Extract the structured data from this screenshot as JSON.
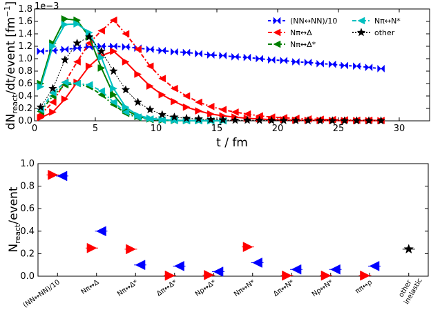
{
  "chart_data": [
    {
      "type": "line",
      "title": "",
      "xlabel": "t / fm",
      "ylabel": "dN_react/dt/event [fm^-1]",
      "ylabel_parts": {
        "main": "dN",
        "sub": "react",
        "rest": "/dt/event [fm",
        "sup": "−1",
        "end": "]"
      },
      "y_scale_note": "1e−3",
      "xlim": [
        0,
        32.5
      ],
      "ylim": [
        0,
        1.8
      ],
      "xticks": [
        0,
        5,
        10,
        15,
        20,
        25,
        30
      ],
      "yticks": [
        0.0,
        0.2,
        0.4,
        0.6,
        0.8,
        1.0,
        1.2,
        1.4,
        1.6,
        1.8
      ],
      "ytick_labels": [
        "0.0",
        "0.2",
        "0.4",
        "0.6",
        "0.8",
        "1.0",
        "1.2",
        "1.4",
        "1.6",
        "1.8"
      ],
      "grid": false,
      "legend_position": "top-right",
      "series": [
        {
          "name": "(NN↔NN)/10",
          "color": "#0000ff",
          "marker": "bowtie",
          "dash": "4,3",
          "x": [
            0.5,
            1.5,
            2.5,
            3.5,
            4.5,
            5.5,
            6.5,
            7.5,
            8.5,
            9.5,
            10.5,
            11.5,
            12.5,
            13.5,
            14.5,
            15.5,
            16.5,
            17.5,
            18.5,
            19.5,
            20.5,
            21.5,
            22.5,
            23.5,
            24.5,
            25.5,
            26.5,
            27.5,
            28.5
          ],
          "y": [
            1.12,
            1.13,
            1.15,
            1.17,
            1.19,
            1.2,
            1.2,
            1.19,
            1.17,
            1.15,
            1.13,
            1.11,
            1.1,
            1.08,
            1.06,
            1.05,
            1.03,
            1.02,
            1.0,
            0.98,
            0.97,
            0.95,
            0.94,
            0.92,
            0.91,
            0.89,
            0.88,
            0.86,
            0.84
          ]
        },
        {
          "name": "Nπ↔Δ",
          "color": "#ff0000",
          "marker": "tri-left",
          "dash": "6,3,2,3",
          "x": [
            0.5,
            1.5,
            2.5,
            3.5,
            4.5,
            5.5,
            6.5,
            7.5,
            8.5,
            9.5,
            10.5,
            11.5,
            12.5,
            13.5,
            14.5,
            15.5,
            16.5,
            17.5,
            18.5,
            19.5,
            20.5,
            21.5,
            22.5,
            23.5,
            24.5,
            25.5,
            26.5,
            27.5,
            28.5
          ],
          "y": [
            0.1,
            0.3,
            0.62,
            0.95,
            1.25,
            1.45,
            1.62,
            1.4,
            1.15,
            0.88,
            0.68,
            0.52,
            0.4,
            0.3,
            0.23,
            0.18,
            0.14,
            0.11,
            0.08,
            0.06,
            0.05,
            0.04,
            0.03,
            0.025,
            0.02,
            0.015,
            0.01,
            0.01,
            0.005
          ]
        },
        {
          "name": "",
          "color": "#ff0000",
          "marker": "tri-right",
          "dash": "",
          "x": [
            0.5,
            1.5,
            2.5,
            3.5,
            4.5,
            5.5,
            6.5,
            7.5,
            8.5,
            9.5,
            10.5,
            11.5,
            12.5,
            13.5,
            14.5,
            15.5,
            16.5,
            17.5,
            18.5,
            19.5,
            20.5,
            21.5,
            22.5,
            23.5,
            24.5,
            25.5,
            26.5,
            27.5,
            28.5
          ],
          "y": [
            0.05,
            0.14,
            0.35,
            0.62,
            0.88,
            1.05,
            1.12,
            0.95,
            0.75,
            0.56,
            0.42,
            0.31,
            0.22,
            0.16,
            0.11,
            0.08,
            0.06,
            0.04,
            0.03,
            0.02,
            0.015,
            0.01,
            0.008,
            0.006,
            0.005,
            0.004,
            0.003,
            0.002,
            0.002
          ]
        },
        {
          "name": "Nπ↔Δ*",
          "color": "#007f00",
          "marker": "tri-left",
          "dash": "6,3,2,3",
          "x": [
            0.5,
            1.5,
            2.5,
            3.5,
            4.5,
            5.5,
            6.5,
            7.5,
            8.5,
            9.5,
            10.5,
            11.5,
            12.5,
            13.5,
            14.5,
            15.5
          ],
          "y": [
            0.15,
            0.4,
            0.58,
            0.6,
            0.55,
            0.42,
            0.26,
            0.12,
            0.05,
            0.02,
            0.01,
            0.005,
            0.003,
            0.002,
            0.001,
            0.001
          ]
        },
        {
          "name": "",
          "color": "#007f00",
          "marker": "tri-right",
          "dash": "",
          "x": [
            0.5,
            1.5,
            2.5,
            3.5,
            4.5,
            5.5,
            6.5,
            7.5,
            8.5,
            9.5,
            10.5,
            11.5,
            12.5,
            13.5,
            14.5,
            15.5
          ],
          "y": [
            0.6,
            1.25,
            1.64,
            1.62,
            1.35,
            0.85,
            0.42,
            0.18,
            0.07,
            0.03,
            0.01,
            0.005,
            0.003,
            0.002,
            0.001,
            0.001
          ]
        },
        {
          "name": "Nπ↔N*",
          "color": "#00bfbf",
          "marker": "tri-left",
          "dash": "6,3,2,3",
          "x": [
            0.5,
            1.5,
            2.5,
            3.5,
            4.5,
            5.5,
            6.5,
            7.5,
            8.5,
            9.5,
            10.5,
            11.5,
            12.5,
            13.5,
            14.5,
            15.5
          ],
          "y": [
            0.18,
            0.45,
            0.62,
            0.6,
            0.58,
            0.48,
            0.3,
            0.14,
            0.06,
            0.03,
            0.01,
            0.005,
            0.003,
            0.002,
            0.001,
            0.001
          ]
        },
        {
          "name": "",
          "color": "#00bfbf",
          "marker": "tri-right",
          "dash": "",
          "x": [
            0.5,
            1.5,
            2.5,
            3.5,
            4.5,
            5.5,
            6.5,
            7.5,
            8.5,
            9.5,
            10.5,
            11.5,
            12.5,
            13.5,
            14.5,
            15.5
          ],
          "y": [
            0.55,
            1.2,
            1.55,
            1.56,
            1.42,
            1.02,
            0.52,
            0.22,
            0.09,
            0.04,
            0.02,
            0.01,
            0.005,
            0.003,
            0.002,
            0.001
          ]
        },
        {
          "name": "other",
          "color": "#000000",
          "marker": "star",
          "dash": "2,2",
          "x": [
            0.5,
            1.5,
            2.5,
            3.5,
            4.5,
            5.5,
            6.5,
            7.5,
            8.5,
            9.5,
            10.5,
            11.5,
            12.5,
            13.5,
            14.5,
            15.5,
            16.5,
            17.5,
            18.5,
            19.5,
            20.5,
            21.5,
            22.5,
            23.5,
            24.5,
            25.5,
            26.5,
            27.5,
            28.5
          ],
          "y": [
            0.22,
            0.52,
            0.98,
            1.25,
            1.35,
            1.12,
            0.8,
            0.5,
            0.3,
            0.18,
            0.1,
            0.06,
            0.04,
            0.03,
            0.02,
            0.015,
            0.01,
            0.01,
            0.008,
            0.006,
            0.005,
            0.004,
            0.003,
            0.002,
            0.002,
            0.001,
            0.001,
            0.001,
            0.001
          ]
        }
      ]
    },
    {
      "type": "scatter",
      "title": "",
      "xlabel": "",
      "ylabel": "N_react/event",
      "ylabel_parts": {
        "main": "N",
        "sub": "react",
        "rest": "/event"
      },
      "ylim": [
        0,
        1.0
      ],
      "yticks": [
        0.0,
        0.2,
        0.4,
        0.6,
        0.8,
        1.0
      ],
      "ytick_labels": [
        "0.0",
        "0.2",
        "0.4",
        "0.6",
        "0.8",
        "1.0"
      ],
      "grid": false,
      "categories": [
        "(NN↔NN)/10",
        "Nπ↔Δ",
        "Nπ↔Δ*",
        "Δπ↔Δ*",
        "Nρ↔Δ*",
        "Nπ↔N*",
        "Δπ↔N*",
        "Nρ↔N*",
        "ππ↔ρ",
        "other inelastic"
      ],
      "series": [
        {
          "name": "",
          "color": "#ff0000",
          "marker": "tri-right",
          "x_offset": -0.12,
          "values": [
            0.9,
            0.25,
            0.24,
            0.005,
            0.01,
            0.26,
            0.005,
            0.005,
            0.005,
            null
          ]
        },
        {
          "name": "",
          "color": "#0000ff",
          "marker": "tri-left",
          "x_offset": 0.12,
          "values": [
            0.89,
            0.4,
            0.1,
            0.09,
            0.04,
            0.12,
            0.06,
            0.06,
            0.09,
            null
          ]
        },
        {
          "name": "",
          "color": "#000000",
          "marker": "star",
          "x_offset": 0,
          "values": [
            null,
            null,
            null,
            null,
            null,
            null,
            null,
            null,
            null,
            0.24
          ]
        }
      ]
    }
  ]
}
